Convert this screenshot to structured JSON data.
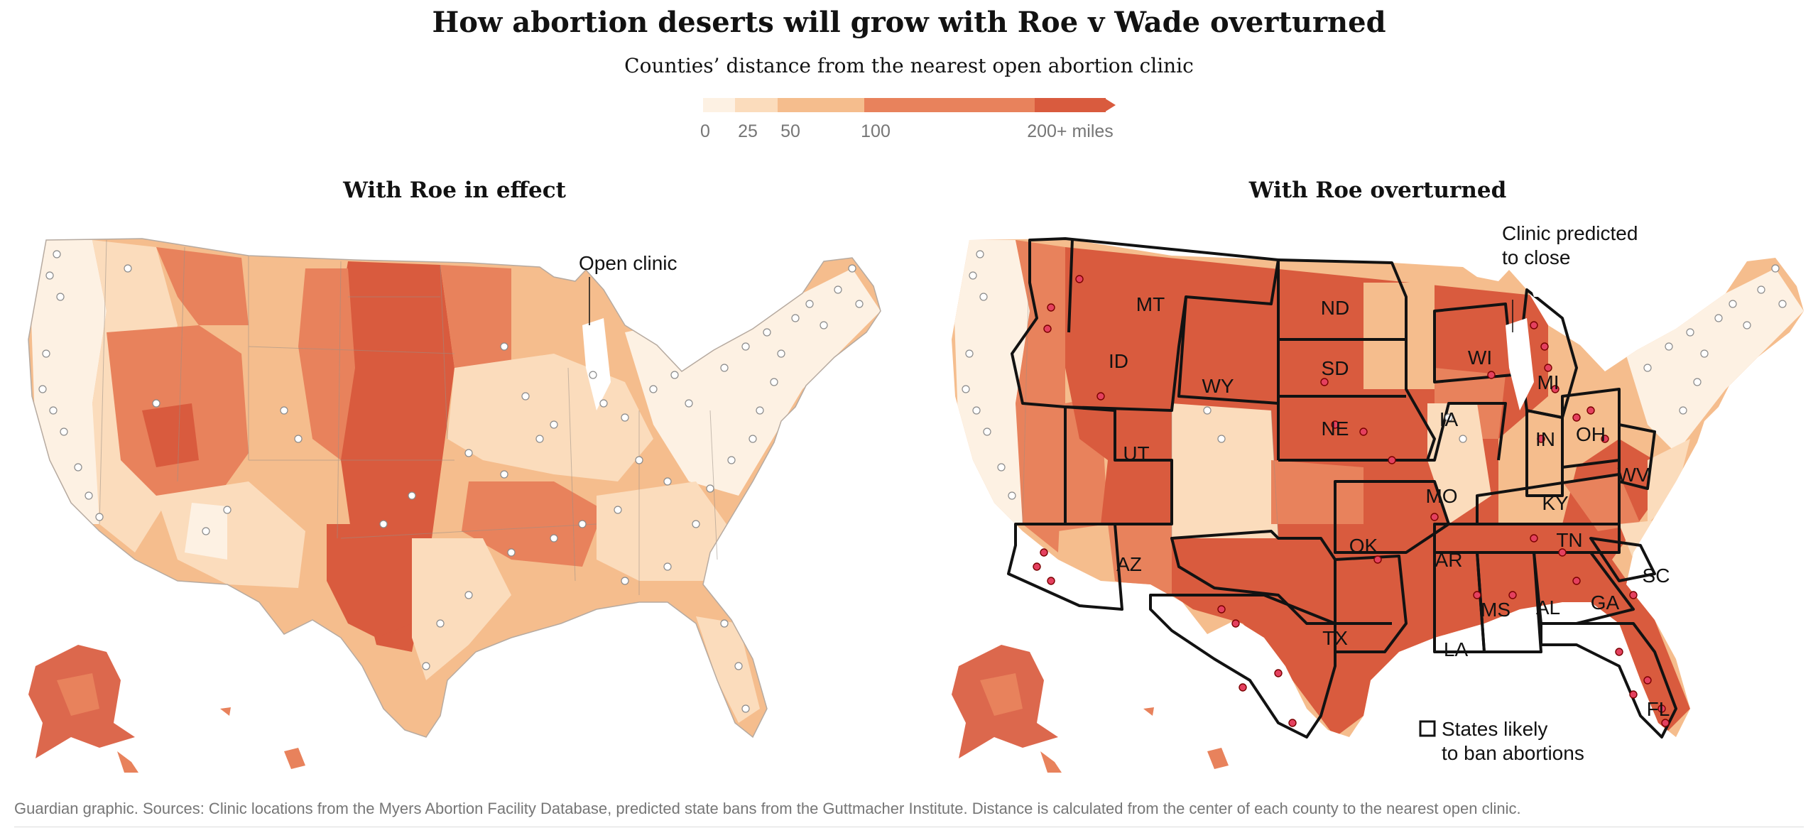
{
  "title": "How abortion deserts will grow with Roe v Wade overturned",
  "subtitle": "Counties’ distance from the nearest open abortion clinic",
  "legend": {
    "ticks": [
      "0",
      "25",
      "50",
      "100",
      "200+ miles"
    ],
    "bins": [
      {
        "from": 0,
        "to": 25,
        "color": "#fdf1e3"
      },
      {
        "from": 25,
        "to": 50,
        "color": "#fbdcbc"
      },
      {
        "from": 50,
        "to": 100,
        "color": "#f5bd8d"
      },
      {
        "from": 100,
        "to": 200,
        "color": "#e8825c"
      },
      {
        "from": 200,
        "to": "200+",
        "color": "#d95b3e"
      }
    ]
  },
  "panels": {
    "left": {
      "title": "With Roe in effect",
      "annotation": "Open clinic"
    },
    "right": {
      "title": "With Roe overturned",
      "annotation_line1": "Clinic predicted",
      "annotation_line2": "to close",
      "legend_line1": "States likely",
      "legend_line2": "to ban abortions",
      "state_labels": [
        "MT",
        "ND",
        "SD",
        "WY",
        "ID",
        "NE",
        "UT",
        "WI",
        "MI",
        "IA",
        "IN",
        "OH",
        "MO",
        "WV",
        "KY",
        "OK",
        "TN",
        "AZ",
        "AR",
        "SC",
        "GA",
        "AL",
        "MS",
        "TX",
        "LA",
        "FL"
      ]
    }
  },
  "colors": {
    "open_clinic": "#ffffff",
    "closing_clinic": "#c70000",
    "ban_state_fill": "#d95b3e",
    "border": "#121212"
  },
  "footer": "Guardian graphic. Sources: Clinic locations from the Myers Abortion Facility Database, predicted state bans from the Guttmacher Institute. Distance is calculated from the center of each county to the nearest open clinic."
}
